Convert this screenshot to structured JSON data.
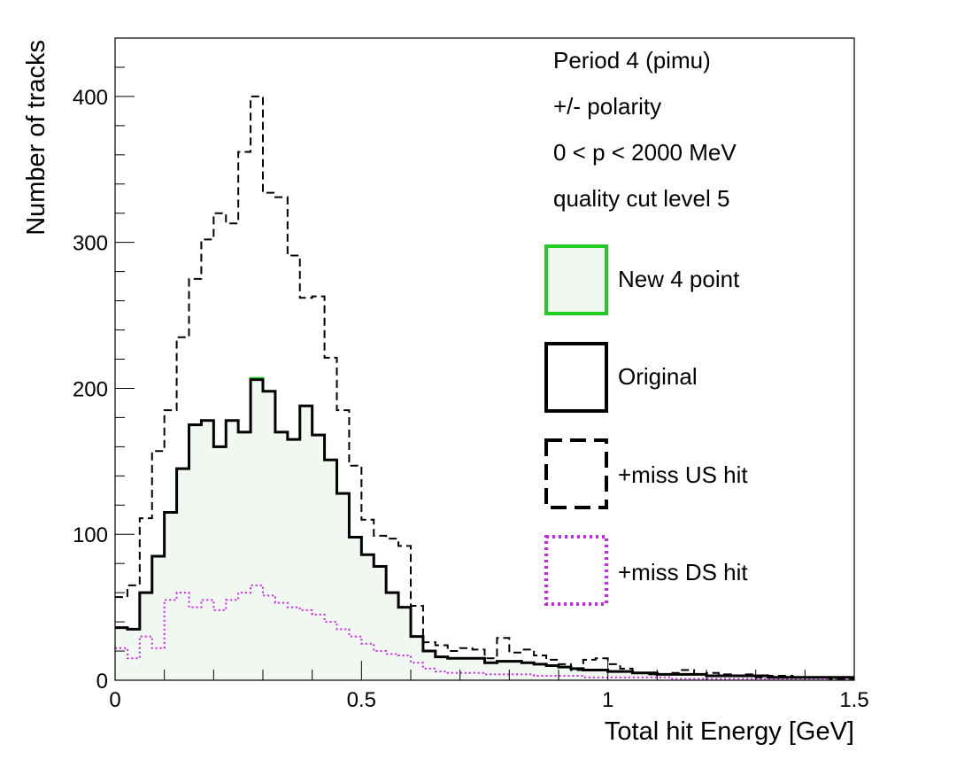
{
  "chart_data": {
    "type": "histogram",
    "xlabel": "Total hit Energy [GeV]",
    "ylabel": "Number of tracks",
    "xlim": [
      0,
      1.5
    ],
    "ylim": [
      0,
      440
    ],
    "x_ticks": [
      0,
      0.5,
      1,
      1.5
    ],
    "x_tick_labels": [
      "0",
      "0.5",
      "1",
      "1.5"
    ],
    "y_ticks": [
      0,
      100,
      200,
      300,
      400
    ],
    "y_tick_labels": [
      "0",
      "100",
      "200",
      "300",
      "400"
    ],
    "bin_width": 0.025,
    "bin_start": 0,
    "info_lines": [
      "Period 4 (pimu)",
      "+/- polarity",
      "0 < p < 2000 MeV",
      "quality cut level 5"
    ],
    "legend_position": "right",
    "series": [
      {
        "name": "+miss US hit",
        "color": "#000000",
        "style": "dashed",
        "values": [
          57,
          65,
          111,
          157,
          185,
          235,
          275,
          302,
          320,
          313,
          362,
          400,
          334,
          331,
          291,
          262,
          263,
          221,
          185,
          147,
          110,
          99,
          97,
          92,
          51,
          26,
          24,
          20,
          22,
          21,
          15,
          29,
          19,
          21,
          17,
          14,
          11,
          7,
          14,
          15,
          11,
          8,
          5,
          4,
          4,
          5,
          7,
          4,
          5,
          4,
          3,
          4,
          2,
          3,
          3,
          2,
          2,
          2,
          1,
          1
        ]
      },
      {
        "name": "Original",
        "color": "#000000",
        "style": "solid",
        "values": [
          36,
          35,
          60,
          85,
          115,
          145,
          175,
          178,
          160,
          178,
          170,
          206,
          198,
          170,
          165,
          188,
          168,
          151,
          128,
          98,
          86,
          78,
          60,
          50,
          30,
          20,
          16,
          15,
          15,
          15,
          12,
          13,
          13,
          12,
          11,
          10,
          9,
          8,
          7,
          7,
          6,
          6,
          5,
          5,
          4,
          4,
          4,
          4,
          3,
          3,
          3,
          3,
          3,
          2,
          2,
          2,
          2,
          2,
          2,
          2
        ]
      },
      {
        "name": "New 4 point",
        "color": "#22cc22",
        "fill": "#f1f8f1",
        "style": "solid",
        "values": [
          36,
          35,
          60,
          85,
          115,
          145,
          175,
          178,
          160,
          178,
          170,
          207,
          198,
          170,
          165,
          188,
          168,
          151,
          128,
          98,
          86,
          78,
          60,
          50,
          30,
          20,
          16,
          15,
          15,
          15,
          12,
          13,
          13,
          12,
          11,
          10,
          9,
          8,
          7,
          7,
          6,
          6,
          5,
          5,
          4,
          4,
          4,
          4,
          3,
          3,
          3,
          3,
          3,
          2,
          2,
          2,
          2,
          2,
          2,
          2
        ]
      },
      {
        "name": "+miss DS hit",
        "color": "#cc22ee",
        "style": "dotted",
        "values": [
          22,
          15,
          30,
          22,
          55,
          60,
          50,
          55,
          48,
          55,
          60,
          65,
          58,
          53,
          50,
          48,
          45,
          40,
          35,
          30,
          25,
          20,
          18,
          17,
          12,
          8,
          6,
          5,
          5,
          5,
          4,
          4,
          4,
          4,
          3,
          3,
          3,
          3,
          2,
          2,
          2,
          2,
          2,
          2,
          2,
          1,
          1,
          1,
          1,
          1,
          1,
          1,
          1,
          1,
          1,
          1,
          1,
          1,
          1,
          1
        ]
      }
    ]
  }
}
